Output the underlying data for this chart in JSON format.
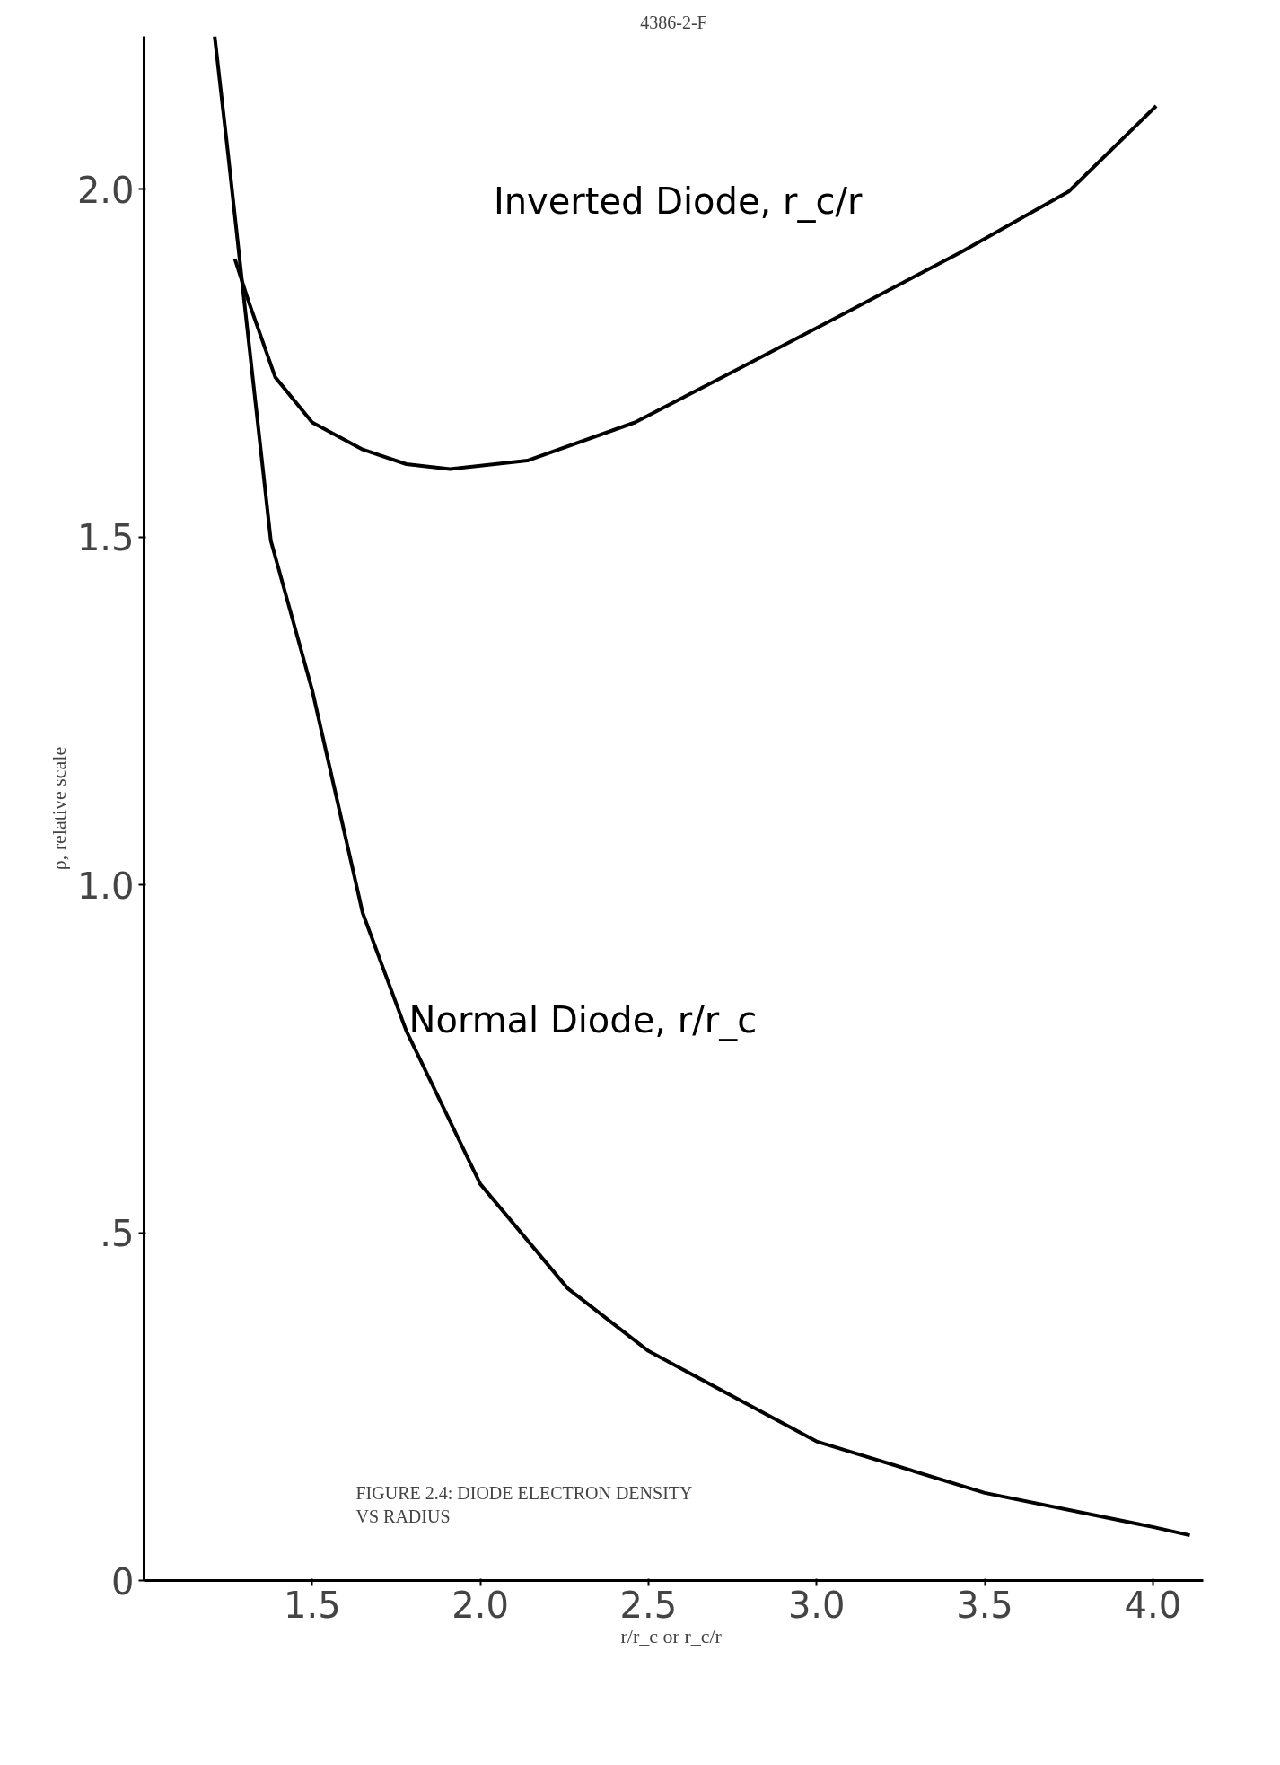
{
  "chart_data": {
    "type": "line",
    "xlabel": "r/r_c  or r_c/r",
    "ylabel": "ρ, relative scale",
    "annotations": [
      "4386-2-F",
      "FIGURE 2.4: DIODE ELECTRON DENSITY\nVS RADIUS"
    ],
    "xlim": [
      1.0,
      4.15
    ],
    "ylim": [
      0,
      2.22
    ],
    "xticks": [
      1.5,
      {
        "value": 2.0,
        "label": "2.0"
      },
      2.5,
      {
        "value": 3.0,
        "label": "3.0"
      },
      3.5,
      {
        "value": 4.0,
        "label": "4.0"
      }
    ],
    "yticks": [
      0,
      {
        "value": 0.5,
        "label": ".5"
      },
      {
        "value": 1.0,
        "label": "1.0"
      },
      1.5,
      {
        "value": 2.0,
        "label": "2.0"
      }
    ],
    "grid": false,
    "marker": "none",
    "line_style": "solid",
    "series": [
      {
        "name": "Inverted Diode, r_c/r",
        "color": "#000000",
        "x": [
          1.27,
          1.31,
          1.39,
          1.5,
          1.65,
          1.78,
          1.91,
          2.14,
          2.46,
          2.78,
          3.1,
          3.43,
          3.75,
          4.01
        ],
        "values": [
          1.9,
          1.84,
          1.73,
          1.665,
          1.626,
          1.605,
          1.598,
          1.61,
          1.665,
          1.745,
          1.826,
          1.91,
          1.997,
          2.12
        ]
      },
      {
        "name": "Normal Diode, r/r_c",
        "color": "#000000",
        "x": [
          1.21,
          1.25,
          1.3,
          1.377,
          1.5,
          1.65,
          1.78,
          2.0,
          2.26,
          2.5,
          3.0,
          3.5,
          4.0,
          4.11
        ],
        "values": [
          2.22,
          2.05,
          1.83,
          1.495,
          1.28,
          0.96,
          0.79,
          0.57,
          0.42,
          0.33,
          0.2,
          0.126,
          0.077,
          0.065
        ]
      }
    ]
  }
}
